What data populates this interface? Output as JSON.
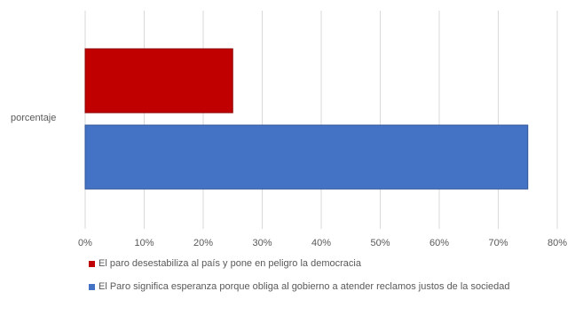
{
  "chart_data": {
    "type": "bar",
    "orientation": "horizontal",
    "categories": [
      "porcentaje"
    ],
    "series": [
      {
        "name": "El paro desestabiliza al país y pone en peligro la democracia",
        "values": [
          0.25
        ],
        "color": "#c00000"
      },
      {
        "name": "El Paro significa esperanza porque obliga al gobierno a atender reclamos justos de la sociedad",
        "values": [
          0.75
        ],
        "color": "#4472c4"
      }
    ],
    "xlim": [
      0,
      0.8
    ],
    "xticks": [
      "0%",
      "10%",
      "20%",
      "30%",
      "40%",
      "50%",
      "60%",
      "70%",
      "80%"
    ],
    "grid": true,
    "legend_position": "bottom"
  }
}
